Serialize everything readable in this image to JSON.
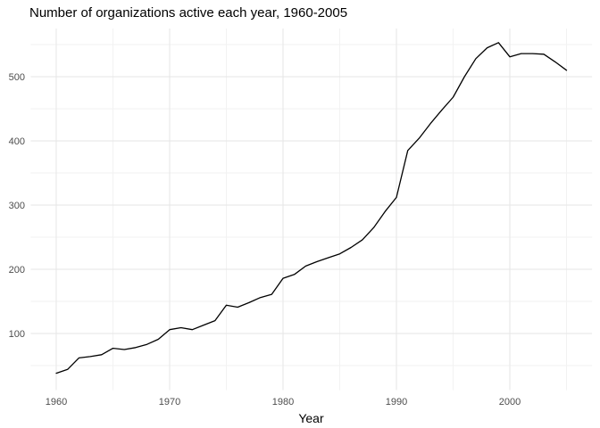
{
  "title": "Number of organizations active each year, 1960-2005",
  "colors": {
    "line": "#000000",
    "grid_major": "#e6e6e6",
    "grid_minor": "#f2f2f2",
    "tick_label": "#4d4d4d",
    "title_text": "#000000",
    "axis_title_text": "#000000",
    "background": "#ffffff"
  },
  "chart_data": {
    "type": "line",
    "title": "Number of organizations active each year, 1960-2005",
    "xlabel": "Year",
    "ylabel": "",
    "legend_position": "none",
    "grid": "on",
    "x": [
      1960,
      1961,
      1962,
      1963,
      1964,
      1965,
      1966,
      1967,
      1968,
      1969,
      1970,
      1971,
      1972,
      1973,
      1974,
      1975,
      1976,
      1977,
      1978,
      1979,
      1980,
      1981,
      1982,
      1983,
      1984,
      1985,
      1986,
      1987,
      1988,
      1989,
      1990,
      1991,
      1992,
      1993,
      1994,
      1995,
      1996,
      1997,
      1998,
      1999,
      2000,
      2001,
      2002,
      2003,
      2004,
      2005
    ],
    "values": [
      38,
      44,
      62,
      64,
      67,
      77,
      75,
      78,
      83,
      91,
      106,
      109,
      106,
      113,
      120,
      144,
      141,
      148,
      156,
      161,
      186,
      192,
      205,
      212,
      218,
      224,
      234,
      246,
      265,
      290,
      312,
      385,
      404,
      427,
      448,
      468,
      500,
      528,
      545,
      553,
      531,
      536,
      536,
      535,
      523,
      510
    ],
    "x_domain": [
      1957.75,
      2007.25
    ],
    "y_domain": [
      11.8,
      575.0
    ],
    "x_major_ticks": [
      1960,
      1970,
      1980,
      1990,
      2000
    ],
    "x_minor_ticks": [
      1965,
      1975,
      1985,
      1995,
      2005
    ],
    "y_major_ticks": [
      100,
      200,
      300,
      400,
      500
    ],
    "y_minor_ticks": [
      50,
      150,
      250,
      350,
      450,
      550
    ]
  }
}
